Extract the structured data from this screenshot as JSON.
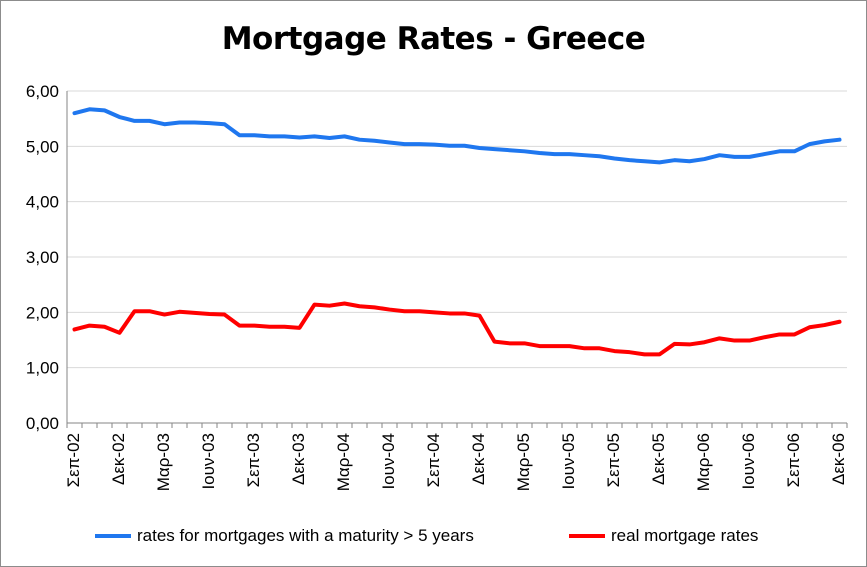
{
  "chart_data": {
    "type": "line",
    "title": "Mortgage Rates - Greece",
    "xlabel": "",
    "ylabel": "",
    "ylim": [
      0,
      6
    ],
    "yticks": [
      "0,00",
      "1,00",
      "2,00",
      "3,00",
      "4,00",
      "5,00",
      "6,00"
    ],
    "xticks": [
      "Σεπ-02",
      "Δεκ-02",
      "Μαρ-03",
      "Ιουν-03",
      "Σεπ-03",
      "Δεκ-03",
      "Μαρ-04",
      "Ιουν-04",
      "Σεπ-04",
      "Δεκ-04",
      "Μαρ-05",
      "Ιουν-05",
      "Σεπ-05",
      "Δεκ-05",
      "Μαρ-06",
      "Ιουν-06",
      "Σεπ-06",
      "Δεκ-06"
    ],
    "grid": "horizontal",
    "legend_position": "bottom",
    "series": [
      {
        "name": "rates for mortgages with a maturity > 5 years",
        "color": "#1f77ef",
        "values": [
          5.6,
          5.67,
          5.65,
          5.53,
          5.46,
          5.46,
          5.4,
          5.43,
          5.43,
          5.42,
          5.4,
          5.2,
          5.2,
          5.18,
          5.18,
          5.16,
          5.18,
          5.15,
          5.18,
          5.12,
          5.1,
          5.07,
          5.04,
          5.04,
          5.03,
          5.01,
          5.01,
          4.97,
          4.95,
          4.93,
          4.91,
          4.88,
          4.86,
          4.86,
          4.84,
          4.82,
          4.78,
          4.75,
          4.73,
          4.71,
          4.75,
          4.73,
          4.77,
          4.84,
          4.81,
          4.81,
          4.86,
          4.91,
          4.91,
          5.04,
          5.09,
          5.12
        ]
      },
      {
        "name": "real mortgage rates",
        "color": "#ff0000",
        "values": [
          1.69,
          1.76,
          1.74,
          1.63,
          2.02,
          2.02,
          1.96,
          2.01,
          1.99,
          1.97,
          1.96,
          1.76,
          1.76,
          1.74,
          1.74,
          1.72,
          2.14,
          2.12,
          2.16,
          2.11,
          2.09,
          2.05,
          2.02,
          2.02,
          2.0,
          1.98,
          1.98,
          1.94,
          1.47,
          1.44,
          1.44,
          1.39,
          1.39,
          1.39,
          1.35,
          1.35,
          1.3,
          1.28,
          1.24,
          1.24,
          1.43,
          1.42,
          1.46,
          1.53,
          1.49,
          1.49,
          1.55,
          1.6,
          1.6,
          1.73,
          1.77,
          1.83
        ]
      }
    ]
  }
}
